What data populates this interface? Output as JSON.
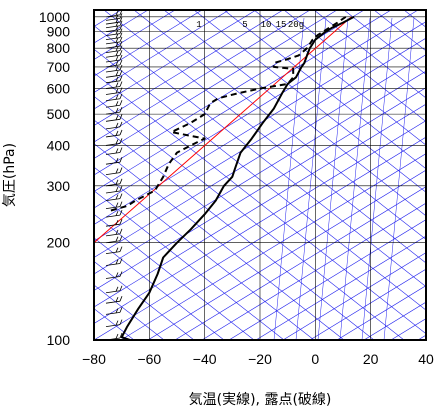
{
  "chart_data": {
    "type": "line",
    "xlabel": "気温(実線), 露点(破線)",
    "ylabel": "気圧(hPa)",
    "xlim": [
      -80,
      40
    ],
    "ylim": [
      1050,
      100
    ],
    "y_scale": "log",
    "x_ticks": [
      "−80",
      "−60",
      "−40",
      "−20",
      "0",
      "20",
      "40"
    ],
    "x_tick_values": [
      -80,
      -60,
      -40,
      -20,
      0,
      20,
      40
    ],
    "y_ticks": [
      "100",
      "200",
      "300",
      "400",
      "500",
      "600",
      "700",
      "800",
      "900",
      "1000"
    ],
    "y_tick_values": [
      100,
      200,
      300,
      400,
      500,
      600,
      700,
      800,
      900,
      1000
    ],
    "mixing_ratio_labels": [
      "1",
      "5",
      "10",
      "15",
      "20g"
    ],
    "grid": true,
    "series": [
      {
        "style": "solid",
        "color": "#000000",
        "points": [
          {
            "p": 1000,
            "t": 14
          },
          {
            "p": 960,
            "t": 10
          },
          {
            "p": 925,
            "t": 6
          },
          {
            "p": 890,
            "t": 3
          },
          {
            "p": 850,
            "t": 0
          },
          {
            "p": 800,
            "t": -2
          },
          {
            "p": 760,
            "t": -3
          },
          {
            "p": 720,
            "t": -4
          },
          {
            "p": 700,
            "t": -5
          },
          {
            "p": 650,
            "t": -7
          },
          {
            "p": 620,
            "t": -10
          },
          {
            "p": 580,
            "t": -12
          },
          {
            "p": 520,
            "t": -15
          },
          {
            "p": 470,
            "t": -19
          },
          {
            "p": 420,
            "t": -23
          },
          {
            "p": 380,
            "t": -27
          },
          {
            "p": 340,
            "t": -29
          },
          {
            "p": 320,
            "t": -30
          },
          {
            "p": 300,
            "t": -33
          },
          {
            "p": 270,
            "t": -36
          },
          {
            "p": 245,
            "t": -40
          },
          {
            "p": 220,
            "t": -45
          },
          {
            "p": 200,
            "t": -50
          },
          {
            "p": 180,
            "t": -55
          },
          {
            "p": 160,
            "t": -57
          },
          {
            "p": 140,
            "t": -60
          },
          {
            "p": 125,
            "t": -64
          },
          {
            "p": 110,
            "t": -68
          },
          {
            "p": 102,
            "t": -70
          },
          {
            "p": 100,
            "t": -67
          }
        ]
      },
      {
        "style": "dashed",
        "color": "#000000",
        "points": [
          {
            "p": 1000,
            "t": 11
          },
          {
            "p": 960,
            "t": 8
          },
          {
            "p": 925,
            "t": 5
          },
          {
            "p": 880,
            "t": 1
          },
          {
            "p": 850,
            "t": -1
          },
          {
            "p": 800,
            "t": -3
          },
          {
            "p": 760,
            "t": -6
          },
          {
            "p": 740,
            "t": -10
          },
          {
            "p": 720,
            "t": -15
          },
          {
            "p": 700,
            "t": -15
          },
          {
            "p": 690,
            "t": -8
          },
          {
            "p": 650,
            "t": -8
          },
          {
            "p": 620,
            "t": -10
          },
          {
            "p": 600,
            "t": -20
          },
          {
            "p": 580,
            "t": -28
          },
          {
            "p": 560,
            "t": -35
          },
          {
            "p": 540,
            "t": -38
          },
          {
            "p": 500,
            "t": -40
          },
          {
            "p": 470,
            "t": -45
          },
          {
            "p": 440,
            "t": -52
          },
          {
            "p": 420,
            "t": -40
          },
          {
            "p": 400,
            "t": -45
          },
          {
            "p": 380,
            "t": -50
          },
          {
            "p": 350,
            "t": -53
          },
          {
            "p": 320,
            "t": -55
          },
          {
            "p": 290,
            "t": -58
          },
          {
            "p": 270,
            "t": -65
          },
          {
            "p": 260,
            "t": -68
          },
          {
            "p": 250,
            "t": -75
          }
        ]
      }
    ],
    "reference_line": {
      "color": "#ff0000",
      "points": [
        {
          "p": 1000,
          "t": 13
        },
        {
          "p": 200,
          "t": -80
        }
      ]
    },
    "guide_color": "#2222ee"
  }
}
